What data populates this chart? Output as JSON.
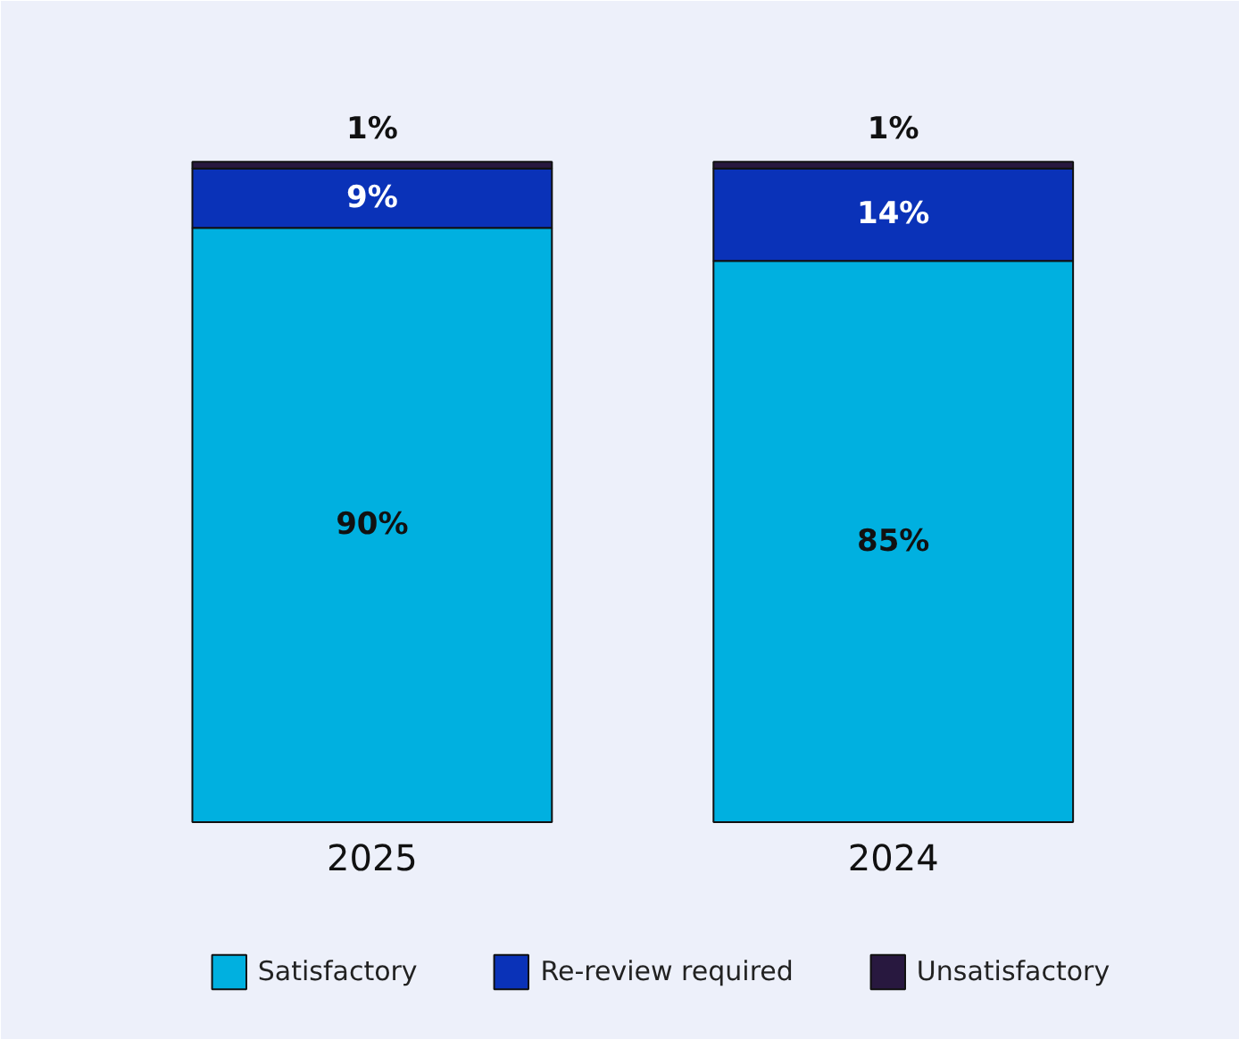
{
  "chart_data": {
    "type": "bar",
    "stacked": true,
    "categories": [
      "2025",
      "2024"
    ],
    "series": [
      {
        "name": "Satisfactory",
        "color": "#00b0e0",
        "values": [
          90,
          85
        ],
        "value_labels": [
          "90%",
          "85%"
        ]
      },
      {
        "name": "Re-review required",
        "color": "#0a32b8",
        "values": [
          9,
          14
        ],
        "value_labels": [
          "9%",
          "14%"
        ]
      },
      {
        "name": "Unsatisfactory",
        "color": "#28183f",
        "values": [
          1,
          1
        ],
        "value_labels": [
          "1%",
          "1%"
        ]
      }
    ],
    "legend": "bottom",
    "tick_labels": "x"
  }
}
